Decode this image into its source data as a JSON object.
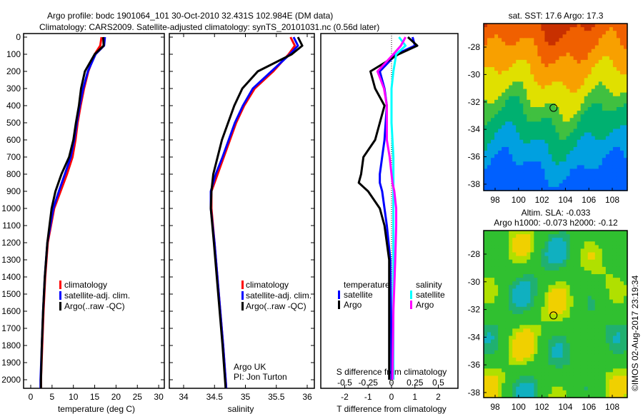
{
  "title_line1": "Argo profile: bodc 1901064_101 30-Oct-2010 32.431S 102.984E (DM data)",
  "title_line2": "Climatology: CARS2009. Satellite-adjusted climatology: synTS_20101031.nc (0.56d later)",
  "colors": {
    "climatology": "#ff0000",
    "satellite": "#0000ff",
    "argo": "#000000",
    "sat_salinity": "#00ffff",
    "argo_salinity": "#ff00ff"
  },
  "chart_data": [
    {
      "type": "line",
      "name": "temperature-profile",
      "xlabel": "temperature (deg C)",
      "ylabel": "depth",
      "xlim": [
        -1,
        31
      ],
      "ylim": [
        2050,
        0
      ],
      "xticks": [
        0,
        5,
        10,
        15,
        20,
        25,
        30
      ],
      "yticks": [
        0,
        100,
        200,
        300,
        400,
        500,
        600,
        700,
        800,
        900,
        1000,
        1100,
        1200,
        1300,
        1400,
        1500,
        1600,
        1700,
        1800,
        1900,
        2000
      ],
      "depth": [
        0,
        50,
        100,
        200,
        300,
        400,
        500,
        600,
        700,
        800,
        900,
        1000,
        1200,
        1400,
        1600,
        1800,
        2000,
        2050
      ],
      "series": [
        {
          "name": "climatology",
          "color": "#ff0000",
          "values": [
            16.6,
            16.3,
            15.0,
            13.5,
            12.5,
            11.7,
            11.0,
            10.5,
            9.8,
            8.5,
            7.0,
            5.5,
            4.0,
            3.4,
            3.0,
            2.7,
            2.4,
            2.4
          ]
        },
        {
          "name": "satellite-adj. clim.",
          "color": "#0000ff",
          "values": [
            17.4,
            17.2,
            15.2,
            13.4,
            12.3,
            11.5,
            10.8,
            10.2,
            9.4,
            8.0,
            6.6,
            5.3,
            3.9,
            3.3,
            2.9,
            2.6,
            2.3,
            2.3
          ]
        },
        {
          "name": "Argo(..raw -QC)",
          "color": "#000000",
          "values": [
            17.0,
            17.1,
            15.0,
            12.7,
            11.8,
            11.3,
            10.6,
            10.0,
            9.0,
            7.2,
            5.8,
            4.9,
            3.9,
            3.3,
            2.9,
            2.6,
            2.4,
            2.4
          ]
        }
      ],
      "legend": [
        "climatology",
        "satellite-adj. clim.",
        "Argo(..raw -QC)"
      ]
    },
    {
      "type": "line",
      "name": "salinity-profile",
      "xlabel": "salinity",
      "xlim": [
        33.7,
        36.05
      ],
      "ylim": [
        2050,
        0
      ],
      "xticks": [
        34,
        34.5,
        35,
        35.5,
        36
      ],
      "depth": [
        0,
        50,
        100,
        200,
        300,
        400,
        500,
        600,
        700,
        800,
        900,
        1000,
        1200,
        1500,
        1800,
        2000,
        2050
      ],
      "series": [
        {
          "name": "climatology",
          "color": "#ff0000",
          "values": [
            35.73,
            35.8,
            35.7,
            35.45,
            35.15,
            34.98,
            34.85,
            34.75,
            34.65,
            34.55,
            34.45,
            34.45,
            34.5,
            34.57,
            34.64,
            34.68,
            34.69
          ]
        },
        {
          "name": "satellite-adj. clim.",
          "color": "#0000ff",
          "values": [
            35.78,
            35.85,
            35.72,
            35.42,
            35.12,
            34.96,
            34.83,
            34.73,
            34.63,
            34.52,
            34.44,
            34.44,
            34.5,
            34.57,
            34.64,
            34.68,
            34.69
          ]
        },
        {
          "name": "Argo(..raw -QC)",
          "color": "#000000",
          "values": [
            35.85,
            35.92,
            35.75,
            35.2,
            34.95,
            34.82,
            34.72,
            34.62,
            34.55,
            34.48,
            34.45,
            34.44,
            34.49,
            34.56,
            34.63,
            34.67,
            34.68
          ]
        }
      ],
      "legend": [
        "climatology",
        "satellite-adj. clim.",
        "Argo(..raw -QC)"
      ],
      "annotation": [
        "Argo UK",
        "PI: Jon Turton"
      ]
    },
    {
      "type": "line",
      "name": "difference-profile",
      "xlabel": "T difference from climatology",
      "x2label": "S difference from climatology",
      "xlim": [
        -3,
        3
      ],
      "x2lim": [
        -0.75,
        0.75
      ],
      "ylim": [
        2050,
        0
      ],
      "xticks": [
        -2,
        -1,
        0,
        1,
        2
      ],
      "x2ticks": [
        "-0.5",
        "-0.25",
        "0",
        "0.25",
        "0.5"
      ],
      "depth": [
        0,
        50,
        100,
        200,
        300,
        400,
        500,
        600,
        700,
        800,
        850,
        900,
        1000,
        1100,
        1300,
        1600,
        2000
      ],
      "series": [
        {
          "name": "temperature satellite",
          "color": "#0000ff",
          "units": "T",
          "values": [
            0.9,
            1.0,
            0.2,
            -0.5,
            -0.3,
            -0.2,
            -0.25,
            -0.3,
            -0.4,
            -0.5,
            -0.5,
            -0.4,
            -0.3,
            -0.2,
            -0.05,
            -0.02,
            0
          ]
        },
        {
          "name": "temperature Argo",
          "color": "#000000",
          "units": "T",
          "values": [
            0.7,
            1.1,
            0.3,
            -0.9,
            -0.7,
            -0.3,
            -0.5,
            -0.7,
            -1.2,
            -1.3,
            -1.4,
            -1.0,
            -0.5,
            -0.3,
            -0.1,
            -0.1,
            -0.1
          ]
        },
        {
          "name": "salinity satellite",
          "color": "#00ffff",
          "units": "S",
          "values": [
            0.08,
            0.15,
            0.05,
            0.02,
            0.0,
            0.0,
            0.0,
            0.01,
            0.02,
            0.02,
            0.02,
            0.02,
            0.02,
            0.02,
            0.02,
            0.02,
            0.02
          ]
        },
        {
          "name": "salinity Argo",
          "color": "#ff00ff",
          "units": "S",
          "values": [
            0.15,
            0.1,
            0.02,
            -0.15,
            -0.08,
            -0.05,
            -0.05,
            -0.05,
            -0.02,
            0.0,
            0.01,
            0.03,
            0.05,
            0.05,
            0.04,
            0.02,
            0.01
          ]
        }
      ],
      "legend": {
        "temperature_title": "temperature",
        "salinity_title": "salinity",
        "items": [
          "satellite",
          "Argo",
          "satellite",
          "Argo"
        ]
      }
    },
    {
      "type": "heatmap",
      "name": "sst-map",
      "title": "sat. SST: 17.6 Argo: 17.3",
      "xlim": [
        97,
        109
      ],
      "ylim": [
        -38.4,
        -26.8
      ],
      "xticks": [
        98,
        100,
        102,
        104,
        106,
        108
      ],
      "yticks": [
        -28,
        -30,
        -32,
        -34,
        -36,
        -38
      ],
      "marker": [
        102.984,
        -32.431
      ]
    },
    {
      "type": "heatmap",
      "name": "sla-map",
      "title": "Altim. SLA: -0.033",
      "subtitle": "Argo h1000: -0.073 h2000: -0.12",
      "xlim": [
        97,
        109
      ],
      "ylim": [
        -38.4,
        -26.8
      ],
      "xticks": [
        98,
        100,
        102,
        104,
        106,
        108
      ],
      "yticks": [
        -28,
        -30,
        -32,
        -34,
        -36,
        -38
      ],
      "marker": [
        102.984,
        -32.431
      ]
    }
  ],
  "credit": "©IMOS 02-Aug-2017 23:19:34"
}
